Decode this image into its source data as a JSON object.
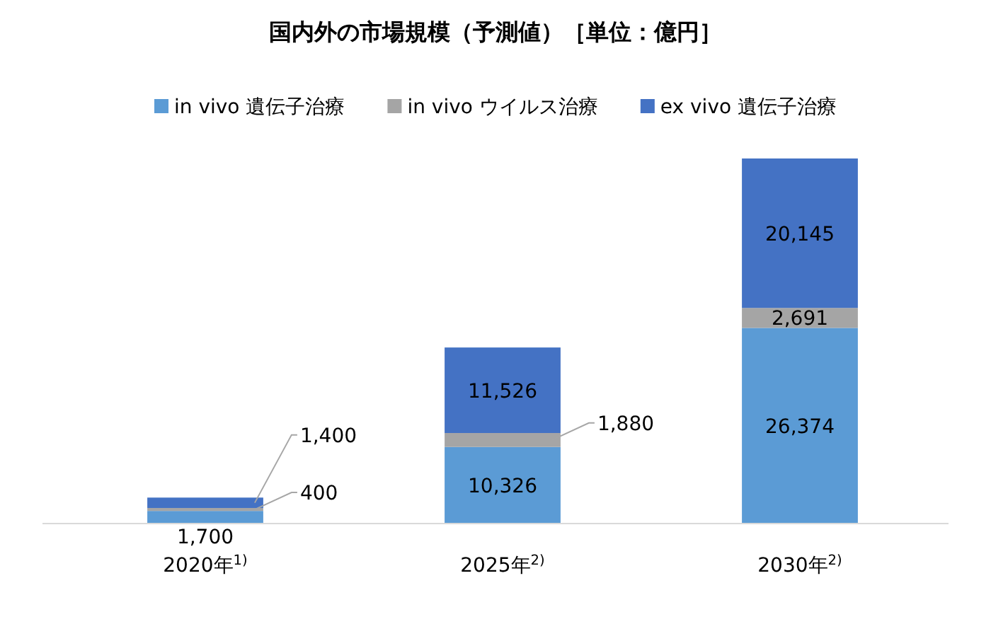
{
  "chart_data": {
    "type": "bar",
    "stacked": true,
    "title": "国内外の市場規模（予測値）［単位：億円］",
    "categories": [
      "2020年$^{1)}$",
      "2025年$^{2)}$",
      "2030年$^{2)}$"
    ],
    "series": [
      {
        "name": "in vivo 遺伝子治療",
        "color": "#5b9bd5",
        "values": [
          1700,
          10326,
          26374
        ],
        "value_labels": [
          "1,700",
          "10,326",
          "26,374"
        ]
      },
      {
        "name": "in vivo ウイルス治療",
        "color": "#a5a5a5",
        "values": [
          400,
          1880,
          2691
        ],
        "value_labels": [
          "400",
          "1,880",
          "2,691"
        ]
      },
      {
        "name": "ex vivo 遺伝子治療",
        "color": "#4472c4",
        "values": [
          1400,
          11526,
          20145
        ],
        "value_labels": [
          "1,400",
          "11,526",
          "20,145"
        ]
      }
    ],
    "legend": "top"
  }
}
